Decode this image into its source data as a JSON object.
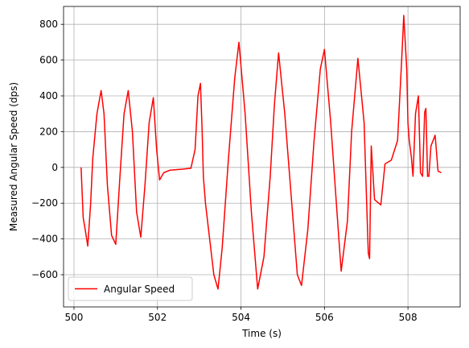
{
  "chart_data": {
    "type": "line",
    "title": "",
    "xlabel": "Time (s)",
    "ylabel": "Measured Angular Speed (dps)",
    "xlim": [
      499.75,
      509.25
    ],
    "ylim": [
      -780,
      900
    ],
    "xticks": [
      500,
      502,
      504,
      506,
      508
    ],
    "yticks": [
      -600,
      -400,
      -200,
      0,
      200,
      400,
      600,
      800
    ],
    "xtick_labels": [
      "500",
      "502",
      "504",
      "506",
      "508"
    ],
    "ytick_labels": [
      "−600",
      "−400",
      "−200",
      "0",
      "200",
      "400",
      "600",
      "800"
    ],
    "grid": true,
    "legend": {
      "position": "lower-left",
      "entries": [
        "Angular Speed"
      ]
    },
    "series": [
      {
        "name": "Angular Speed",
        "color": "#ff0000",
        "x": [
          500.17,
          500.22,
          500.27,
          500.33,
          500.4,
          500.45,
          500.55,
          500.65,
          500.72,
          500.8,
          500.9,
          501.0,
          501.1,
          501.2,
          501.3,
          501.4,
          501.5,
          501.6,
          501.7,
          501.8,
          501.9,
          501.98,
          502.05,
          502.15,
          502.3,
          502.6,
          502.8,
          502.9,
          502.97,
          503.03,
          503.07,
          503.1,
          503.15,
          503.25,
          503.35,
          503.45,
          503.55,
          503.7,
          503.85,
          503.95,
          504.1,
          504.25,
          504.4,
          504.55,
          504.7,
          504.8,
          504.9,
          505.05,
          505.2,
          505.35,
          505.45,
          505.6,
          505.75,
          505.9,
          506.0,
          506.15,
          506.3,
          506.4,
          506.55,
          506.65,
          506.8,
          506.95,
          507.05,
          507.08,
          507.12,
          507.2,
          507.35,
          507.45,
          507.6,
          507.75,
          507.85,
          507.9,
          507.97,
          508.0,
          508.03,
          508.08,
          508.12,
          508.18,
          508.25,
          508.3,
          508.35,
          508.4,
          508.43,
          508.47,
          508.5,
          508.55,
          508.65,
          508.72,
          508.8
        ],
        "y": [
          0,
          -280,
          -350,
          -440,
          -200,
          50,
          300,
          430,
          300,
          -100,
          -380,
          -430,
          -50,
          300,
          430,
          200,
          -250,
          -390,
          -100,
          250,
          390,
          100,
          -70,
          -30,
          -15,
          -10,
          -5,
          100,
          400,
          470,
          200,
          -50,
          -200,
          -400,
          -600,
          -680,
          -450,
          50,
          500,
          700,
          300,
          -250,
          -680,
          -500,
          -50,
          350,
          640,
          300,
          -150,
          -600,
          -660,
          -350,
          150,
          550,
          660,
          250,
          -250,
          -580,
          -300,
          200,
          610,
          250,
          -480,
          -510,
          120,
          -180,
          -210,
          20,
          40,
          150,
          600,
          850,
          550,
          250,
          150,
          60,
          -50,
          300,
          400,
          -30,
          -50,
          310,
          330,
          -50,
          -50,
          120,
          180,
          -20,
          -30
        ]
      }
    ]
  }
}
